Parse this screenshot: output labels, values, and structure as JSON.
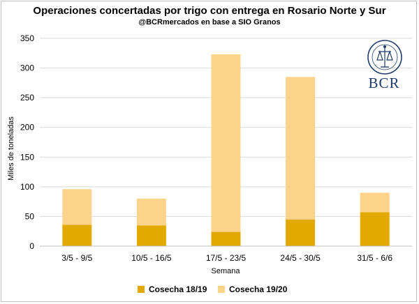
{
  "chart_data": {
    "type": "bar",
    "stacked": true,
    "title": "Operaciones concertadas por trigo con entrega en Rosario Norte y Sur",
    "subtitle": "@BCRmercados en base a SIO Granos",
    "xlabel": "Semana",
    "ylabel": "Miles de toneladas",
    "ylim": [
      0,
      350
    ],
    "yticks": [
      "0",
      "50",
      "100",
      "150",
      "200",
      "250",
      "300",
      "350"
    ],
    "grid": true,
    "legend_position": "bottom",
    "categories": [
      "3/5 - 9/5",
      "10/5 - 16/5",
      "17/5 - 23/5",
      "24/5 - 30/5",
      "31/5 - 6/6"
    ],
    "series": [
      {
        "name": "Cosecha 18/19",
        "color": "#e2aa00",
        "values": [
          36,
          35,
          24,
          45,
          57
        ]
      },
      {
        "name": "Cosecha 19/20",
        "color": "#fdd38b",
        "values": [
          60,
          45,
          299,
          240,
          33
        ]
      }
    ]
  },
  "logo": {
    "text": "BCR",
    "icon": "bcr-seal-icon"
  }
}
